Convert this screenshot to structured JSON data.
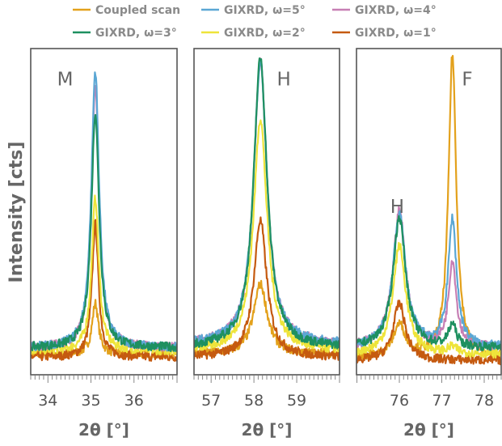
{
  "colors": {
    "coupled": "#e3a11c",
    "w5": "#5ba7d4",
    "w4": "#c77fb4",
    "w3": "#1e9060",
    "w2": "#eee43a",
    "w1": "#c55a10"
  },
  "legend": [
    {
      "key": "coupled",
      "label": "Coupled scan"
    },
    {
      "key": "w5",
      "label": "GIXRD, ω=5°"
    },
    {
      "key": "w4",
      "label": "GIXRD, ω=4°"
    },
    {
      "key": "w3",
      "label": "GIXRD, ω=3°"
    },
    {
      "key": "w2",
      "label": "GIXRD, ω=2°"
    },
    {
      "key": "w1",
      "label": "GIXRD, ω=1°"
    }
  ],
  "ylabel": "Intensity [cts]",
  "chart_data": [
    {
      "type": "line",
      "xlabel": "2θ [°]",
      "xlim": [
        33.6,
        37.0
      ],
      "ylim": [
        0,
        1.0
      ],
      "tick_values": [
        34,
        35,
        36
      ],
      "tick_labels": [
        "34",
        "35",
        "36"
      ],
      "peak_labels": [
        {
          "text": "M",
          "x": 34.4,
          "y": 0.95
        }
      ],
      "peaks": [
        {
          "key": "coupled",
          "center": 35.1,
          "height": 0.22,
          "width": 0.09,
          "base": 0.06
        },
        {
          "key": "w5",
          "center": 35.1,
          "height": 0.95,
          "width": 0.11,
          "base": 0.08
        },
        {
          "key": "w4",
          "center": 35.1,
          "height": 0.9,
          "width": 0.11,
          "base": 0.08
        },
        {
          "key": "w3",
          "center": 35.1,
          "height": 0.82,
          "width": 0.11,
          "base": 0.08
        },
        {
          "key": "w2",
          "center": 35.1,
          "height": 0.55,
          "width": 0.1,
          "base": 0.07
        },
        {
          "key": "w1",
          "center": 35.1,
          "height": 0.47,
          "width": 0.09,
          "base": 0.05
        }
      ]
    },
    {
      "type": "line",
      "xlabel": "2θ [°]",
      "xlim": [
        56.6,
        60.0
      ],
      "ylim": [
        0,
        1.0
      ],
      "tick_values": [
        57,
        58,
        59
      ],
      "tick_labels": [
        "57",
        "58",
        "59"
      ],
      "peak_labels": [
        {
          "text": "H",
          "x": 58.7,
          "y": 0.95
        }
      ],
      "peaks": [
        {
          "key": "coupled",
          "center": 58.15,
          "height": 0.28,
          "width": 0.19,
          "base": 0.06
        },
        {
          "key": "w5",
          "center": 58.15,
          "height": 0.98,
          "width": 0.19,
          "base": 0.09
        },
        {
          "key": "w4",
          "center": 58.15,
          "height": 0.98,
          "width": 0.19,
          "base": 0.09
        },
        {
          "key": "w3",
          "center": 58.15,
          "height": 0.99,
          "width": 0.19,
          "base": 0.08
        },
        {
          "key": "w2",
          "center": 58.15,
          "height": 0.8,
          "width": 0.19,
          "base": 0.07
        },
        {
          "key": "w1",
          "center": 58.15,
          "height": 0.48,
          "width": 0.18,
          "base": 0.05
        }
      ]
    },
    {
      "type": "line",
      "xlabel": "2θ [°]",
      "xlim": [
        74.99,
        78.4
      ],
      "ylim": [
        0,
        1.0
      ],
      "tick_values": [
        76,
        77,
        78
      ],
      "tick_labels": [
        "76",
        "77",
        "78"
      ],
      "peak_labels": [
        {
          "text": "H",
          "x": 75.95,
          "y": 0.55
        },
        {
          "text": "F",
          "x": 77.6,
          "y": 0.95
        }
      ],
      "peaks": [
        {
          "key": "coupled",
          "center": 76.0,
          "height": 0.15,
          "width": 0.18,
          "base": 0.05,
          "center2": 77.25,
          "height2": 1.0,
          "width2": 0.11
        },
        {
          "key": "w5",
          "center": 76.0,
          "height": 0.5,
          "width": 0.18,
          "base": 0.08,
          "center2": 77.25,
          "height2": 0.48,
          "width2": 0.12
        },
        {
          "key": "w4",
          "center": 76.0,
          "height": 0.51,
          "width": 0.18,
          "base": 0.08,
          "center2": 77.25,
          "height2": 0.35,
          "width2": 0.11
        },
        {
          "key": "w3",
          "center": 76.0,
          "height": 0.49,
          "width": 0.18,
          "base": 0.08,
          "center2": 77.25,
          "height2": 0.15,
          "width2": 0.11
        },
        {
          "key": "w2",
          "center": 76.0,
          "height": 0.4,
          "width": 0.18,
          "base": 0.06,
          "center2": 77.25,
          "height2": 0.08,
          "width2": 0.11
        },
        {
          "key": "w1",
          "center": 76.0,
          "height": 0.22,
          "width": 0.17,
          "base": 0.04,
          "center2": 77.25,
          "height2": 0.0,
          "width2": 0.11
        }
      ]
    }
  ]
}
